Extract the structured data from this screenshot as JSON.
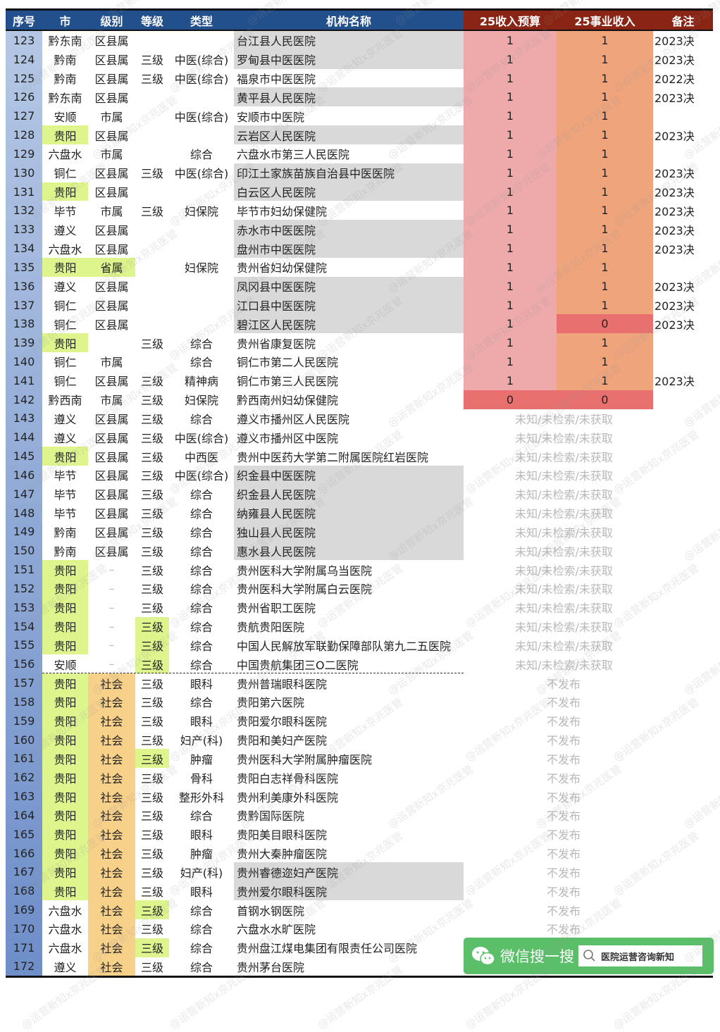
{
  "headers": [
    "序号",
    "市",
    "级别",
    "等级",
    "类型",
    "机构名称",
    "25收入预算",
    "25事业收入",
    "备注"
  ],
  "colors": {
    "header_blue": "#22508c",
    "header_red": "#8a2414",
    "seq_top": "#b3c6e4",
    "seq_bottom": "#6f8fc9",
    "budget_1": "#eeaaab",
    "budget_0": "#e8716f",
    "income_1": "#efa47c",
    "income_0": "#e8716f",
    "highlight_green": "#ddf58c",
    "highlight_orange": "#f7d08a",
    "gray": "#d9d9d9"
  },
  "rows": [
    {
      "seq": "123",
      "city": "黔东南",
      "level": "区县属",
      "grade": "",
      "type": "",
      "name": "台江县人民医院",
      "budget": "1",
      "income": "1",
      "note": "2023决",
      "gray": true
    },
    {
      "seq": "124",
      "city": "黔南",
      "level": "区县属",
      "grade": "三级",
      "type": "中医(综合)",
      "name": "罗甸县中医医院",
      "budget": "1",
      "income": "1",
      "note": "2023决",
      "gray": true
    },
    {
      "seq": "125",
      "city": "黔南",
      "level": "区县属",
      "grade": "三级",
      "type": "中医(综合)",
      "name": "福泉市中医医院",
      "budget": "1",
      "income": "1",
      "note": "2022决"
    },
    {
      "seq": "126",
      "city": "黔东南",
      "level": "区县属",
      "grade": "",
      "type": "",
      "name": "黄平县人民医院",
      "budget": "1",
      "income": "1",
      "note": "2023决",
      "gray": true
    },
    {
      "seq": "127",
      "city": "安顺",
      "level": "市属",
      "grade": "",
      "type": "中医(综合)",
      "name": "安顺市中医院",
      "budget": "1",
      "income": "1",
      "note": ""
    },
    {
      "seq": "128",
      "city": "贵阳",
      "city_hl": "green",
      "level": "区县属",
      "grade": "",
      "type": "",
      "name": "云岩区人民医院",
      "budget": "1",
      "income": "1",
      "note": "2023决",
      "gray": true
    },
    {
      "seq": "129",
      "city": "六盘水",
      "level": "市属",
      "grade": "",
      "type": "综合",
      "name": "六盘水市第三人民医院",
      "budget": "1",
      "income": "1",
      "note": ""
    },
    {
      "seq": "130",
      "city": "铜仁",
      "level": "区县属",
      "grade": "三级",
      "type": "中医(综合)",
      "name": "印江土家族苗族自治县中医医院",
      "budget": "1",
      "income": "1",
      "note": "2023决",
      "gray": true
    },
    {
      "seq": "131",
      "city": "贵阳",
      "city_hl": "green",
      "level": "区县属",
      "grade": "",
      "type": "",
      "name": "白云区人民医院",
      "budget": "1",
      "income": "1",
      "note": "2023决",
      "gray": true
    },
    {
      "seq": "132",
      "city": "毕节",
      "level": "市属",
      "grade": "三级",
      "type": "妇保院",
      "name": "毕节市妇幼保健院",
      "budget": "1",
      "income": "1",
      "note": "2023决"
    },
    {
      "seq": "133",
      "city": "遵义",
      "level": "区县属",
      "grade": "",
      "type": "",
      "name": "赤水市中医医院",
      "budget": "1",
      "income": "1",
      "note": "2023决",
      "gray": true
    },
    {
      "seq": "134",
      "city": "六盘水",
      "level": "区县属",
      "grade": "",
      "type": "",
      "name": "盘州市中医医院",
      "budget": "1",
      "income": "1",
      "note": "2023决",
      "gray": true
    },
    {
      "seq": "135",
      "city": "贵阳",
      "city_hl": "green",
      "level": "省属",
      "level_hl": "green",
      "grade": "",
      "type": "妇保院",
      "name": "贵州省妇幼保健院",
      "budget": "1",
      "income": "1",
      "note": ""
    },
    {
      "seq": "136",
      "city": "遵义",
      "level": "区县属",
      "grade": "",
      "type": "",
      "name": "凤冈县中医医院",
      "budget": "1",
      "income": "1",
      "note": "2023决",
      "gray": true
    },
    {
      "seq": "137",
      "city": "铜仁",
      "level": "区县属",
      "grade": "",
      "type": "",
      "name": "江口县中医医院",
      "budget": "1",
      "income": "1",
      "note": "2023决",
      "gray": true
    },
    {
      "seq": "138",
      "city": "铜仁",
      "level": "区县属",
      "grade": "",
      "type": "",
      "name": "碧江区人民医院",
      "budget": "1",
      "income": "0",
      "note": "2023决",
      "gray": true
    },
    {
      "seq": "139",
      "city": "贵阳",
      "city_hl": "green",
      "level": "",
      "grade": "三级",
      "type": "综合",
      "name": "贵州省康复医院",
      "budget": "1",
      "income": "1",
      "note": ""
    },
    {
      "seq": "140",
      "city": "铜仁",
      "level": "市属",
      "grade": "",
      "type": "综合",
      "name": "铜仁市第二人民医院",
      "budget": "1",
      "income": "1",
      "note": ""
    },
    {
      "seq": "141",
      "city": "铜仁",
      "level": "区县属",
      "grade": "三级",
      "type": "精神病",
      "name": "铜仁市第三人民医院",
      "budget": "1",
      "income": "1",
      "note": "2023决"
    },
    {
      "seq": "142",
      "city": "黔西南",
      "level": "市属",
      "grade": "三级",
      "type": "妇保院",
      "name": "黔西南州妇幼保健院",
      "budget": "0",
      "income": "0",
      "note": ""
    },
    {
      "seq": "143",
      "city": "遵义",
      "level": "区县属",
      "grade": "三级",
      "type": "综合",
      "name": "遵义市播州区人民医院",
      "status": "未知/未检索/未获取"
    },
    {
      "seq": "144",
      "city": "遵义",
      "level": "区县属",
      "grade": "三级",
      "type": "中医(综合)",
      "name": "遵义市播州区中医院",
      "status": "未知/未检索/未获取"
    },
    {
      "seq": "145",
      "city": "贵阳",
      "city_hl": "green",
      "level": "区县属",
      "grade": "三级",
      "type": "中西医",
      "name": "贵州中医药大学第二附属医院红岩医院",
      "status": "未知/未检索/未获取"
    },
    {
      "seq": "146",
      "city": "毕节",
      "level": "区县属",
      "grade": "三级",
      "type": "中医(综合)",
      "name": "织金县中医医院",
      "status": "未知/未检索/未获取",
      "gray": true
    },
    {
      "seq": "147",
      "city": "毕节",
      "level": "区县属",
      "grade": "三级",
      "type": "综合",
      "name": "织金县人民医院",
      "status": "未知/未检索/未获取",
      "gray": true
    },
    {
      "seq": "148",
      "city": "毕节",
      "level": "区县属",
      "grade": "三级",
      "type": "综合",
      "name": "纳雍县人民医院",
      "status": "未知/未检索/未获取",
      "gray": true
    },
    {
      "seq": "149",
      "city": "黔南",
      "level": "区县属",
      "grade": "三级",
      "type": "综合",
      "name": "独山县人民医院",
      "status": "未知/未检索/未获取",
      "gray": true
    },
    {
      "seq": "150",
      "city": "黔南",
      "level": "区县属",
      "grade": "三级",
      "type": "综合",
      "name": "惠水县人民医院",
      "status": "未知/未检索/未获取",
      "gray": true
    },
    {
      "seq": "151",
      "city": "贵阳",
      "city_hl": "green",
      "level": "–",
      "grade": "三级",
      "type": "综合",
      "name": "贵州医科大学附属乌当医院",
      "status": "未知/未检索/未获取"
    },
    {
      "seq": "152",
      "city": "贵阳",
      "city_hl": "green",
      "level": "–",
      "grade": "三级",
      "type": "综合",
      "name": "贵州医科大学附属白云医院",
      "status": "未知/未检索/未获取"
    },
    {
      "seq": "153",
      "city": "贵阳",
      "city_hl": "green",
      "level": "–",
      "grade": "三级",
      "type": "综合",
      "name": "贵州省职工医院",
      "status": "未知/未检索/未获取"
    },
    {
      "seq": "154",
      "city": "贵阳",
      "city_hl": "green",
      "level": "–",
      "grade": "三级",
      "grade_hl": "green",
      "type": "综合",
      "name": "贵航贵阳医院",
      "status": "未知/未检索/未获取"
    },
    {
      "seq": "155",
      "city": "贵阳",
      "city_hl": "green",
      "level": "–",
      "grade": "三级",
      "grade_hl": "green",
      "type": "综合",
      "name": "中国人民解放军联勤保障部队第九二五医院",
      "status": "未知/未检索/未获取"
    },
    {
      "seq": "156",
      "city": "安顺",
      "level": "–",
      "grade": "三级",
      "grade_hl": "green",
      "type": "综合",
      "name": "中国贵航集团三O二医院",
      "status": "未知/未检索/未获取",
      "dashed": true
    },
    {
      "seq": "157",
      "city": "贵阳",
      "city_hl": "green",
      "level": "社会",
      "level_hl": "orange",
      "grade": "三级",
      "type": "眼科",
      "name": "贵州普瑞眼科医院",
      "status": "不发布"
    },
    {
      "seq": "158",
      "city": "贵阳",
      "city_hl": "green",
      "level": "社会",
      "level_hl": "orange",
      "grade": "三级",
      "type": "综合",
      "name": "贵阳第六医院",
      "status": "不发布"
    },
    {
      "seq": "159",
      "city": "贵阳",
      "city_hl": "green",
      "level": "社会",
      "level_hl": "orange",
      "grade": "三级",
      "type": "眼科",
      "name": "贵阳爱尔眼科医院",
      "status": "不发布"
    },
    {
      "seq": "160",
      "city": "贵阳",
      "city_hl": "green",
      "level": "社会",
      "level_hl": "orange",
      "grade": "三级",
      "type": "妇产(科)",
      "name": "贵阳和美妇产医院",
      "status": "不发布"
    },
    {
      "seq": "161",
      "city": "贵阳",
      "city_hl": "green",
      "level": "社会",
      "level_hl": "orange",
      "grade": "三级",
      "grade_hl": "green",
      "type": "肿瘤",
      "name": "贵州医科大学附属肿瘤医院",
      "status": "不发布"
    },
    {
      "seq": "162",
      "city": "贵阳",
      "city_hl": "green",
      "level": "社会",
      "level_hl": "orange",
      "grade": "三级",
      "type": "骨科",
      "name": "贵阳白志祥骨科医院",
      "status": "不发布"
    },
    {
      "seq": "163",
      "city": "贵阳",
      "city_hl": "green",
      "level": "社会",
      "level_hl": "orange",
      "grade": "三级",
      "type": "整形外科",
      "name": "贵州利美康外科医院",
      "status": "不发布"
    },
    {
      "seq": "164",
      "city": "贵阳",
      "city_hl": "green",
      "level": "社会",
      "level_hl": "orange",
      "grade": "三级",
      "type": "综合",
      "name": "贵黔国际医院",
      "status": "不发布"
    },
    {
      "seq": "165",
      "city": "贵阳",
      "city_hl": "green",
      "level": "社会",
      "level_hl": "orange",
      "grade": "三级",
      "type": "眼科",
      "name": "贵阳美目眼科医院",
      "status": "不发布"
    },
    {
      "seq": "166",
      "city": "贵阳",
      "city_hl": "green",
      "level": "社会",
      "level_hl": "orange",
      "grade": "三级",
      "type": "肿瘤",
      "name": "贵州大秦肿瘤医院",
      "status": "不发布"
    },
    {
      "seq": "167",
      "city": "贵阳",
      "city_hl": "green",
      "level": "社会",
      "level_hl": "orange",
      "grade": "三级",
      "type": "妇产(科)",
      "name": "贵州睿德迩妇产医院",
      "status": "不发布",
      "gray": true
    },
    {
      "seq": "168",
      "city": "贵阳",
      "city_hl": "green",
      "level": "社会",
      "level_hl": "orange",
      "grade": "三级",
      "type": "眼科",
      "name": "贵州爱尔眼科医院",
      "status": "不发布",
      "gray": true
    },
    {
      "seq": "169",
      "city": "六盘水",
      "level": "社会",
      "level_hl": "orange",
      "grade": "三级",
      "grade_hl": "green",
      "type": "综合",
      "name": "首钢水钢医院",
      "status": "不发布"
    },
    {
      "seq": "170",
      "city": "六盘水",
      "level": "社会",
      "level_hl": "orange",
      "grade": "三级",
      "type": "综合",
      "name": "六盘水水旷医院",
      "status": "不发布"
    },
    {
      "seq": "171",
      "city": "六盘水",
      "level": "社会",
      "level_hl": "orange",
      "grade": "三级",
      "grade_hl": "green",
      "type": "综合",
      "name": "贵州盘江煤电集团有限责任公司医院"
    },
    {
      "seq": "172",
      "city": "遵义",
      "level": "社会",
      "level_hl": "orange",
      "grade": "三级",
      "type": "综合",
      "name": "贵州茅台医院"
    }
  ],
  "wechat": {
    "label": "微信搜一搜",
    "search_text": "医院运营咨询新知",
    "icon": "wechat-icon",
    "search_icon": "search-icon"
  },
  "watermark": "@运营新知x京兆医管"
}
